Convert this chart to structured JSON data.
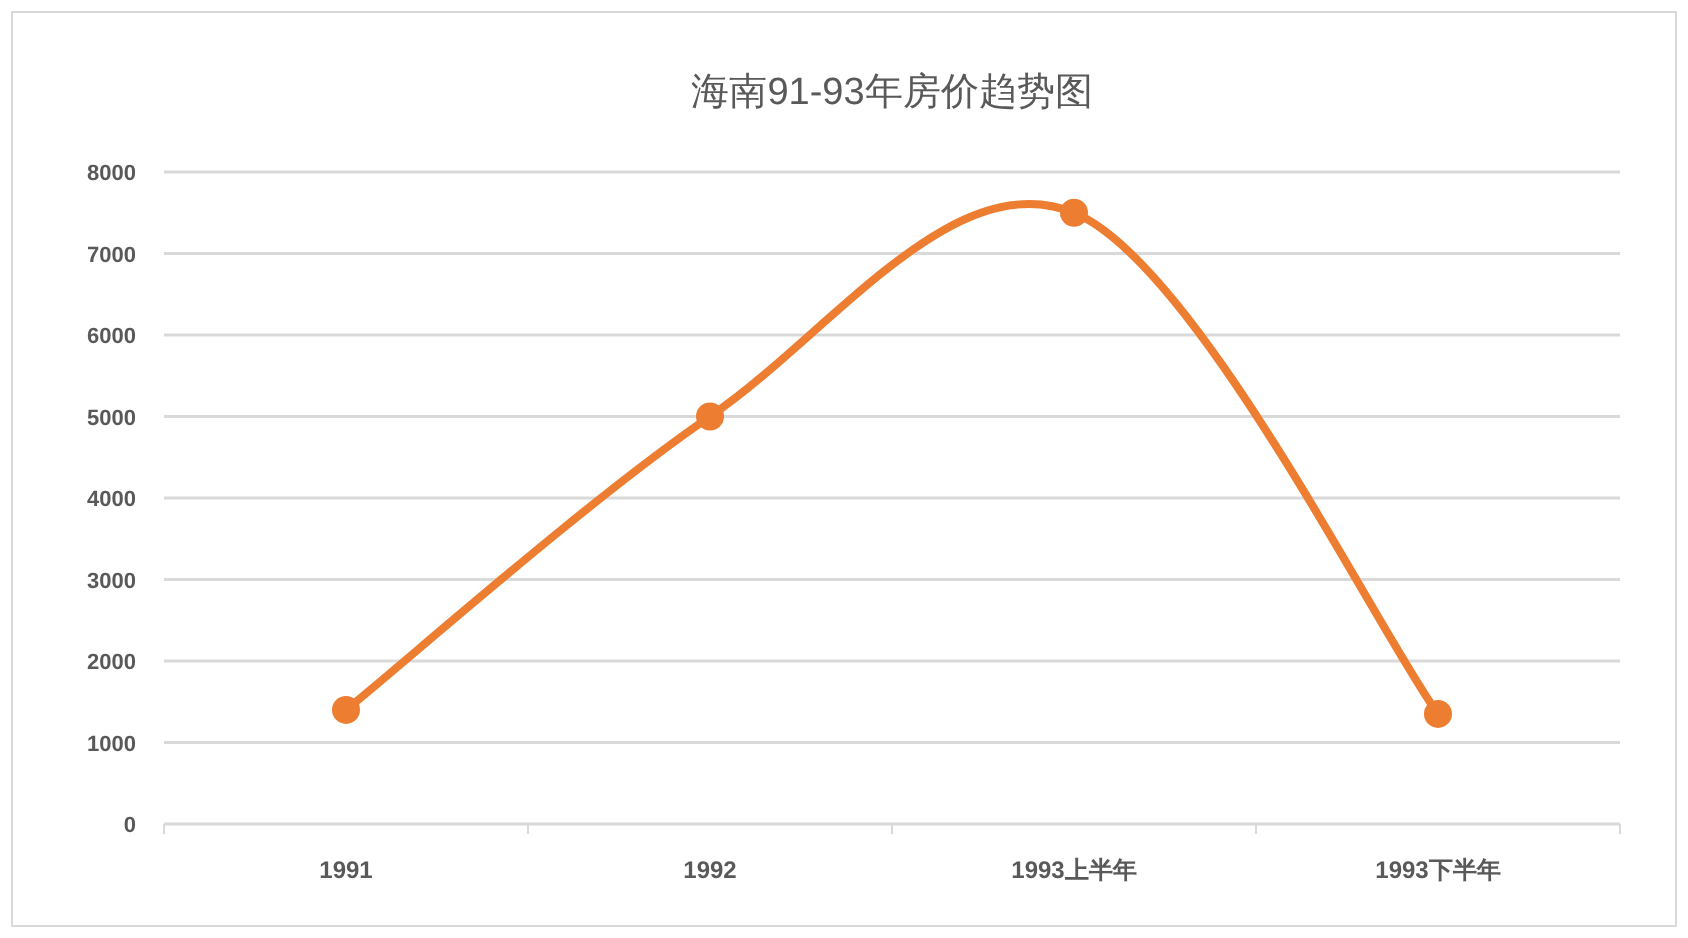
{
  "chart_data": {
    "type": "line",
    "title": "海南91-93年房价趋势图",
    "categories": [
      "1991",
      "1992",
      "1993上半年",
      "1993下半年"
    ],
    "series": [
      {
        "color": "#ed7d31",
        "values": [
          1400,
          5000,
          7500,
          1350
        ]
      }
    ],
    "ylim": [
      0,
      8000
    ],
    "yticks": [
      0,
      1000,
      2000,
      3000,
      4000,
      5000,
      6000,
      7000,
      8000
    ],
    "grid": "y",
    "marker": "circle",
    "line_style": "solid"
  }
}
